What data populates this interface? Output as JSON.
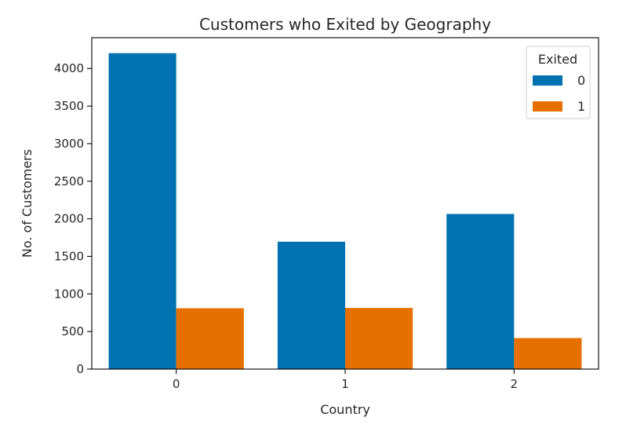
{
  "chart_data": {
    "type": "bar",
    "title": "Customers who Exited by Geography",
    "xlabel": "Country",
    "ylabel": "No. of Customers",
    "categories": [
      "0",
      "1",
      "2"
    ],
    "ylim": [
      0,
      4410
    ],
    "yticks": [
      0,
      500,
      1000,
      1500,
      2000,
      2500,
      3000,
      3500,
      4000
    ],
    "grid": false,
    "legend": {
      "title": "Exited",
      "placement": "top-right"
    },
    "series": [
      {
        "name": "0",
        "color": "#0072B2",
        "values": [
          4204,
          1695,
          2064
        ]
      },
      {
        "name": "1",
        "color": "#E57000",
        "values": [
          810,
          814,
          413
        ]
      }
    ]
  }
}
